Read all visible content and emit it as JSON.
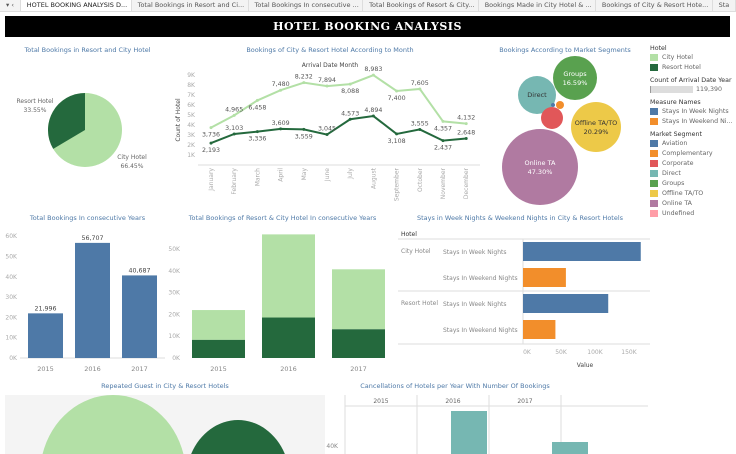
{
  "tabs": [
    "HOTEL BOOKING ANALYSIS D...",
    "Total Bookings in Resort and Ci...",
    "Total Bookings In consecutive ...",
    "Total Bookings of Resort & City...",
    "Bookings Made in City Hotel & ...",
    "Bookings of City & Resort Hote...",
    "Sta"
  ],
  "title": "HOTEL BOOKING ANALYSIS",
  "colors": {
    "city": "#b3e0a6",
    "resort": "#24693d",
    "blue": "#4e79a7",
    "orange": "#f28e2b",
    "teal": "#76b7b2"
  },
  "chart_data": [
    {
      "type": "pie",
      "title": "Total Bookings in Resort and City Hotel",
      "slices": [
        {
          "label": "Resort Hotel",
          "pct": "33.55%",
          "value": 33.55
        },
        {
          "label": "City Hotel",
          "pct": "66.45%",
          "value": 66.45
        }
      ]
    },
    {
      "type": "line",
      "title": "Bookings of City & Resort Hotel According to Month",
      "xlabel": "Arrival Date Month",
      "ylabel": "Count of Hotel",
      "yticks": [
        "1K",
        "2K",
        "3K",
        "4K",
        "5K",
        "6K",
        "7K",
        "8K",
        "9K"
      ],
      "categories": [
        "January",
        "February",
        "March",
        "April",
        "May",
        "June",
        "July",
        "August",
        "September",
        "October",
        "November",
        "December"
      ],
      "series": [
        {
          "name": "City Hotel",
          "values": [
            3736,
            4965,
            6458,
            7480,
            8232,
            7894,
            8088,
            8983,
            7400,
            7605,
            4357,
            4132
          ],
          "labels": [
            "3,736",
            "4,965",
            "6,458",
            "7,480",
            "8,232",
            "7,894",
            "8,088",
            "8,983",
            "7,400",
            "7,605",
            "4,357",
            "4,132"
          ]
        },
        {
          "name": "Resort Hotel",
          "values": [
            2193,
            3103,
            3336,
            3609,
            3559,
            3045,
            4573,
            4894,
            3108,
            3555,
            2437,
            2648
          ],
          "labels": [
            "2,193",
            "3,103",
            "3,336",
            "3,609",
            "3,559",
            "3,045",
            "4,573",
            "4,894",
            "3,108",
            "3,555",
            "2,437",
            "2,648"
          ]
        }
      ]
    },
    {
      "type": "bubble",
      "title": "Bookings According to Market Segments",
      "bubbles": [
        {
          "label": "Online TA",
          "pct": "47.30%"
        },
        {
          "label": "Offline TA/TO",
          "pct": "20.29%"
        },
        {
          "label": "Groups",
          "pct": "16.59%"
        },
        {
          "label": "Direct",
          "pct": ""
        },
        {
          "label": "Corporate",
          "pct": ""
        },
        {
          "label": "Complementary",
          "pct": ""
        },
        {
          "label": "Aviation",
          "pct": ""
        }
      ]
    },
    {
      "type": "bar",
      "title": "Total Bookings In consecutive Years",
      "categories": [
        "2015",
        "2016",
        "2017"
      ],
      "values": [
        21996,
        56707,
        40687
      ],
      "labels": [
        "21,996",
        "56,707",
        "40,687"
      ],
      "yticks": [
        "0K",
        "10K",
        "20K",
        "30K",
        "40K",
        "50K",
        "60K"
      ]
    },
    {
      "type": "bar",
      "title": "Total Bookings of Resort & City Hotel In consecutive Years",
      "stacked": true,
      "categories": [
        "2015",
        "2016",
        "2017"
      ],
      "series": [
        {
          "name": "Resort Hotel",
          "values": [
            8314,
            18567,
            13179
          ]
        },
        {
          "name": "City Hotel",
          "values": [
            13682,
            38140,
            27508
          ]
        }
      ],
      "yticks": [
        "0K",
        "10K",
        "20K",
        "30K",
        "40K",
        "50K"
      ]
    },
    {
      "type": "bar",
      "orientation": "horizontal",
      "title": "Stays in Week Nights & Weekend Nights in City & Resort Hotels",
      "row_header": "Hotel",
      "xlabel": "Value",
      "xticks": [
        "0K",
        "50K",
        "100K",
        "150K"
      ],
      "groups": [
        {
          "hotel": "City Hotel",
          "rows": [
            {
              "label": "Stays In Week Nights",
              "value": 173174
            },
            {
              "label": "Stays In Weekend Nights",
              "value": 63082
            }
          ]
        },
        {
          "hotel": "Resort Hotel",
          "rows": [
            {
              "label": "Stays In Week Nights",
              "value": 125337
            },
            {
              "label": "Stays In Weekend Nights",
              "value": 47664
            }
          ]
        }
      ]
    },
    {
      "type": "bubble",
      "title": "Repeated Guest in City & Resort Hotels"
    },
    {
      "type": "bar",
      "title": "Cancellations of Hotels per Year With Number Of Bookings",
      "columns": [
        "2015",
        "2016",
        "2017"
      ],
      "ytick": "40K"
    }
  ],
  "legend": {
    "hotel_title": "Hotel",
    "hotel": [
      "City Hotel",
      "Resort Hotel"
    ],
    "count_title": "Count of Arrival Date Year",
    "count_value": "119,390",
    "measure_title": "Measure Names",
    "measures": [
      "Stays In Week Nights",
      "Stays In Weekend Ni..."
    ],
    "segment_title": "Market Segment",
    "segments": [
      {
        "label": "Aviation",
        "color": "#4e79a7"
      },
      {
        "label": "Complementary",
        "color": "#f28e2b"
      },
      {
        "label": "Corporate",
        "color": "#e15759"
      },
      {
        "label": "Direct",
        "color": "#76b7b2"
      },
      {
        "label": "Groups",
        "color": "#59a14f"
      },
      {
        "label": "Offline TA/TO",
        "color": "#edc948"
      },
      {
        "label": "Online TA",
        "color": "#b07aa1"
      },
      {
        "label": "Undefined",
        "color": "#ff9da7"
      }
    ]
  }
}
